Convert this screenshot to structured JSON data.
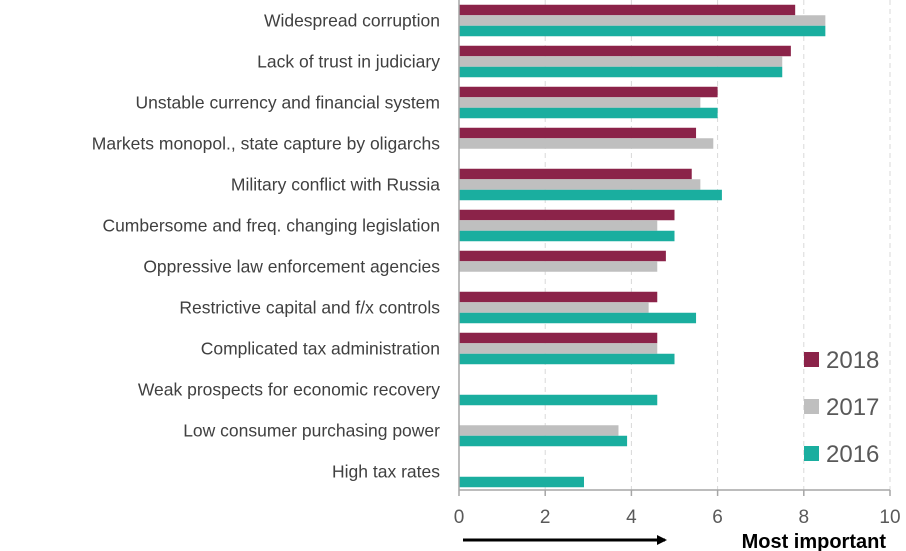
{
  "chart_data": {
    "type": "bar",
    "orientation": "horizontal",
    "categories": [
      "Widespread corruption",
      "Lack of trust in judiciary",
      "Unstable currency and financial system",
      "Markets monopol., state capture by oligarchs",
      "Military conflict with Russia",
      "Cumbersome and freq. changing legislation",
      "Oppressive law enforcement agencies",
      "Restrictive capital and f/x controls",
      "Complicated tax administration",
      "Weak prospects for economic recovery",
      "Low consumer purchasing power",
      "High tax rates"
    ],
    "series": [
      {
        "name": "2018",
        "color": "#8B2349",
        "values": [
          7.8,
          7.7,
          6.0,
          5.5,
          5.4,
          5.0,
          4.8,
          4.6,
          4.6,
          null,
          null,
          null
        ]
      },
      {
        "name": "2017",
        "color": "#BFBFBF",
        "values": [
          8.5,
          7.5,
          5.6,
          5.9,
          5.6,
          4.6,
          4.6,
          4.4,
          4.6,
          null,
          3.7,
          null
        ]
      },
      {
        "name": "2016",
        "color": "#1AAE9F",
        "values": [
          8.5,
          7.5,
          6.0,
          null,
          6.1,
          5.0,
          null,
          5.5,
          5.0,
          4.6,
          3.9,
          2.9
        ]
      }
    ],
    "xlim": [
      0,
      10
    ],
    "xticks": [
      "0",
      "2",
      "4",
      "6",
      "8",
      "10"
    ],
    "grid": "vertical-dashed",
    "legend_position": "bottom-right",
    "annotation": "Most important",
    "axis_color": "#A6A6A6",
    "grid_color": "#D9D9D9"
  }
}
